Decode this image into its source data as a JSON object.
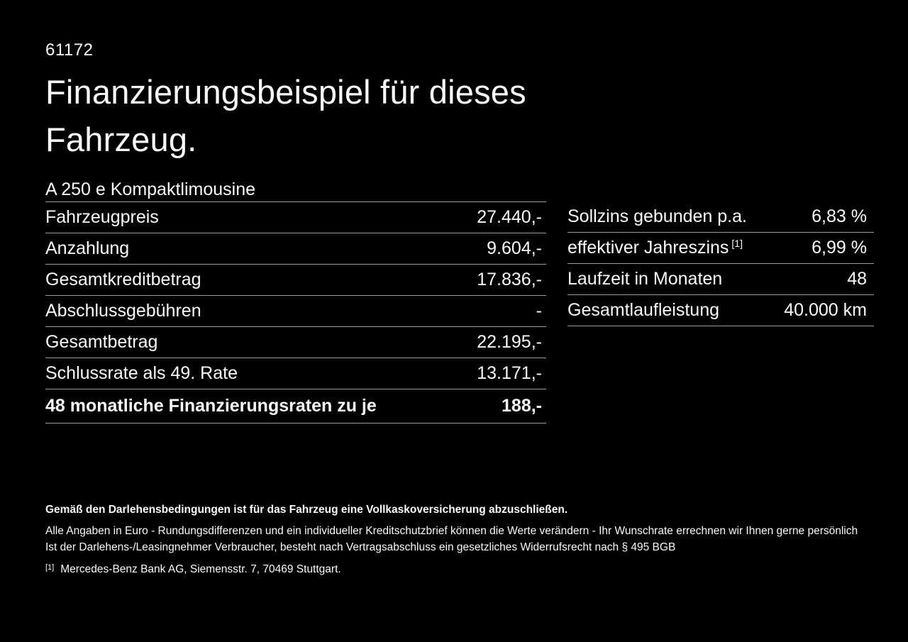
{
  "page": {
    "id_number": "61172",
    "title_line1": "Finanzierungsbeispiel für dieses",
    "title_line2": "Fahrzeug.",
    "subtitle": "A 250 e Kompaktlimousine"
  },
  "left_table": {
    "rows": [
      {
        "label": "Fahrzeugpreis",
        "value": "27.440,-"
      },
      {
        "label": "Anzahlung",
        "value": "9.604,-"
      },
      {
        "label": "Gesamtkreditbetrag",
        "value": "17.836,-"
      },
      {
        "label": "Abschlussgebühren",
        "value": "-"
      },
      {
        "label": "Gesamtbetrag",
        "value": "22.195,-"
      },
      {
        "label": "Schlussrate als 49. Rate",
        "value": "13.171,-"
      },
      {
        "label": "48 monatliche Finanzierungsraten zu je",
        "value": "188,-"
      }
    ]
  },
  "right_table": {
    "rows": [
      {
        "label": "Sollzins gebunden p.a.",
        "superscript": "",
        "value": "6,83 %"
      },
      {
        "label": "effektiver Jahreszins",
        "superscript": "[1]",
        "value": "6,99 %"
      },
      {
        "label": "Laufzeit in Monaten",
        "superscript": "",
        "value": "48"
      },
      {
        "label": "Gesamtlaufleistung",
        "superscript": "",
        "value": "40.000 km"
      }
    ]
  },
  "footer": {
    "bold_note": "Gemäß den Darlehensbedingungen ist für das Fahrzeug eine Vollkaskoversicherung abzuschließen.",
    "note1": "Alle Angaben in Euro - Rundungsdifferenzen und ein individueller Kreditschutzbrief können die Werte verändern - Ihr Wunschrate errechnen wir Ihnen gerne persönlich",
    "note2": "Ist der Darlehens-/Leasingnehmer Verbraucher, besteht nach Vertragsabschluss ein gesetzliches Widerrufsrecht nach § 495 BGB",
    "footnote_marker": "[1]",
    "footnote_text": "Mercedes-Benz Bank AG, Siemensstr. 7, 70469 Stuttgart."
  },
  "colors": {
    "background": "#000000",
    "text": "#fafafa",
    "rule": "#999999"
  }
}
